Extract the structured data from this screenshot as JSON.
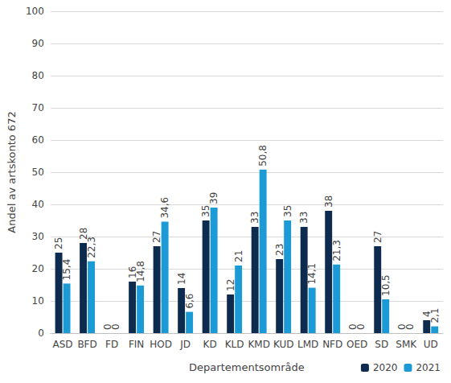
{
  "chart_data": {
    "type": "bar",
    "categories": [
      "ASD",
      "BFD",
      "FD",
      "FIN",
      "HOD",
      "JD",
      "KD",
      "KLD",
      "KMD",
      "KUD",
      "LMD",
      "NFD",
      "OED",
      "SD",
      "SMK",
      "UD"
    ],
    "series": [
      {
        "name": "2020",
        "color": "#0d2b4e",
        "values": [
          25,
          28,
          0,
          16,
          27,
          14,
          35,
          12,
          33,
          23,
          33,
          38,
          0,
          27,
          0,
          4
        ]
      },
      {
        "name": "2021",
        "color": "#1b9ad6",
        "values": [
          15.4,
          22.3,
          0,
          14.8,
          34.6,
          6.6,
          39,
          21,
          50.8,
          35,
          14.1,
          21.3,
          0,
          10.5,
          0,
          2.1
        ],
        "value_labels": [
          "15,4",
          "22,3",
          "0",
          "14,8",
          "34,6",
          "6,6",
          "39",
          "21",
          "50,8",
          "35",
          "14,1",
          "21,3",
          "0",
          "10,5",
          "0",
          "2,1"
        ]
      }
    ],
    "x_label": "Departementsområde",
    "y_label": "Andel av artskonto 672",
    "ylim": [
      0,
      100
    ],
    "yticks": [
      0,
      10,
      20,
      30,
      40,
      50,
      60,
      70,
      80,
      90,
      100
    ],
    "grid": true,
    "legend": "lower right",
    "data_labels": true
  }
}
